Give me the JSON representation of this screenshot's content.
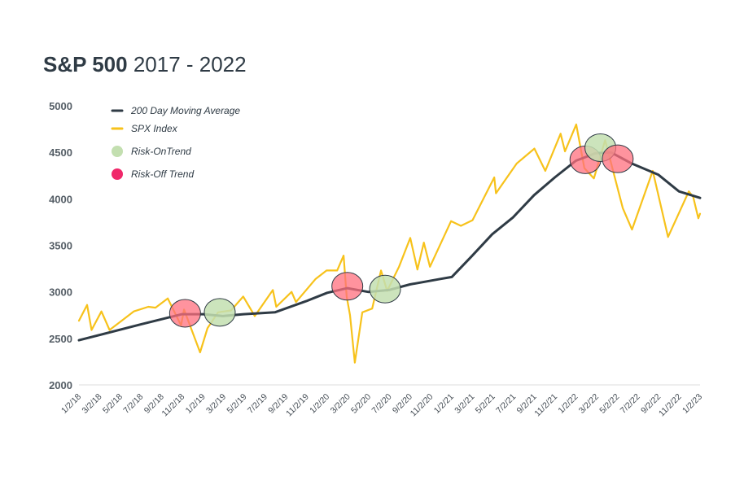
{
  "title": {
    "bold": "S&P 500",
    "rest": " 2017 - 2022"
  },
  "colors": {
    "ma": "#2f3b45",
    "spx": "#f7c21b",
    "risk_on": "#c3dfb0",
    "risk_off": "#ff6f7d",
    "legend_risk_off": "#f0286a",
    "axis": "#dddddd",
    "text": "#2f3b45"
  },
  "chart_data": {
    "type": "line",
    "title": "S&P 500 2017 - 2022",
    "xlabel": "",
    "ylabel": "",
    "ylim": [
      2000,
      5000
    ],
    "xlim": [
      "2018-01-02",
      "2023-01-02"
    ],
    "yticks": [
      "5000",
      "4500",
      "4000",
      "3500",
      "3000",
      "2500",
      "2000"
    ],
    "xticks": [
      "1/2/18",
      "3/2/18",
      "5/2/18",
      "7/2/18",
      "9/2/18",
      "11/2/18",
      "1/2/19",
      "3/2/19",
      "5/2/19",
      "7/2/19",
      "9/2/19",
      "11/2/19",
      "1/2/20",
      "3/2/20",
      "5/2/20",
      "7/2/20",
      "9/2/20",
      "11/2/20",
      "1/2/21",
      "3/2/21",
      "5/2/21",
      "7/2/21",
      "9/2/21",
      "11/2/21",
      "1/2/22",
      "3/2/22",
      "5/2/22",
      "7/2/22",
      "9/2/22",
      "11/2/22",
      "1/2/23"
    ],
    "grid": false,
    "legend_position": "top-left",
    "legend": [
      {
        "label": "200 Day Moving Average",
        "kind": "line",
        "color_key": "ma"
      },
      {
        "label": "SPX Index",
        "kind": "line",
        "color_key": "spx"
      },
      {
        "label": "Risk-OnTrend",
        "kind": "marker",
        "color_key": "risk_on"
      },
      {
        "label": "Risk-Off Trend",
        "kind": "marker",
        "color_key": "legend_risk_off"
      }
    ],
    "series": [
      {
        "name": "SPX Index",
        "points": [
          [
            "2018-01-02",
            2690
          ],
          [
            "2018-01-26",
            2860
          ],
          [
            "2018-02-08",
            2590
          ],
          [
            "2018-03-09",
            2790
          ],
          [
            "2018-04-02",
            2590
          ],
          [
            "2018-05-15",
            2710
          ],
          [
            "2018-06-12",
            2790
          ],
          [
            "2018-07-25",
            2840
          ],
          [
            "2018-08-15",
            2830
          ],
          [
            "2018-09-20",
            2930
          ],
          [
            "2018-10-29",
            2640
          ],
          [
            "2018-11-07",
            2810
          ],
          [
            "2018-12-24",
            2350
          ],
          [
            "2019-01-15",
            2610
          ],
          [
            "2019-02-15",
            2780
          ],
          [
            "2019-03-25",
            2800
          ],
          [
            "2019-04-30",
            2950
          ],
          [
            "2019-06-03",
            2740
          ],
          [
            "2019-07-26",
            3020
          ],
          [
            "2019-08-05",
            2840
          ],
          [
            "2019-09-19",
            3000
          ],
          [
            "2019-10-02",
            2890
          ],
          [
            "2019-11-29",
            3140
          ],
          [
            "2019-12-31",
            3230
          ],
          [
            "2020-01-31",
            3230
          ],
          [
            "2020-02-19",
            3390
          ],
          [
            "2020-02-28",
            2950
          ],
          [
            "2020-03-09",
            2750
          ],
          [
            "2020-03-23",
            2240
          ],
          [
            "2020-04-14",
            2780
          ],
          [
            "2020-05-13",
            2820
          ],
          [
            "2020-06-08",
            3230
          ],
          [
            "2020-06-26",
            3010
          ],
          [
            "2020-07-31",
            3270
          ],
          [
            "2020-09-02",
            3580
          ],
          [
            "2020-09-23",
            3240
          ],
          [
            "2020-10-12",
            3530
          ],
          [
            "2020-10-30",
            3270
          ],
          [
            "2020-12-31",
            3760
          ],
          [
            "2021-01-29",
            3710
          ],
          [
            "2021-03-04",
            3770
          ],
          [
            "2021-05-07",
            4230
          ],
          [
            "2021-05-12",
            4060
          ],
          [
            "2021-07-12",
            4380
          ],
          [
            "2021-09-02",
            4540
          ],
          [
            "2021-10-04",
            4300
          ],
          [
            "2021-11-18",
            4700
          ],
          [
            "2021-12-01",
            4510
          ],
          [
            "2022-01-03",
            4800
          ],
          [
            "2022-01-27",
            4330
          ],
          [
            "2022-02-24",
            4220
          ],
          [
            "2022-03-29",
            4630
          ],
          [
            "2022-05-20",
            3900
          ],
          [
            "2022-06-16",
            3670
          ],
          [
            "2022-08-16",
            4300
          ],
          [
            "2022-09-30",
            3590
          ],
          [
            "2022-11-30",
            4080
          ],
          [
            "2022-12-13",
            4020
          ],
          [
            "2022-12-28",
            3790
          ],
          [
            "2023-01-02",
            3840
          ]
        ]
      },
      {
        "name": "200 Day Moving Average",
        "points": [
          [
            "2018-01-02",
            2480
          ],
          [
            "2018-07-02",
            2650
          ],
          [
            "2018-11-01",
            2760
          ],
          [
            "2019-01-02",
            2760
          ],
          [
            "2019-03-01",
            2740
          ],
          [
            "2019-05-01",
            2760
          ],
          [
            "2019-08-01",
            2780
          ],
          [
            "2019-11-01",
            2900
          ],
          [
            "2020-01-02",
            2990
          ],
          [
            "2020-03-01",
            3040
          ],
          [
            "2020-05-01",
            3000
          ],
          [
            "2020-07-01",
            3020
          ],
          [
            "2020-09-01",
            3080
          ],
          [
            "2020-12-01",
            3140
          ],
          [
            "2021-01-02",
            3160
          ],
          [
            "2021-03-01",
            3380
          ],
          [
            "2021-05-01",
            3620
          ],
          [
            "2021-07-01",
            3800
          ],
          [
            "2021-09-01",
            4040
          ],
          [
            "2021-11-01",
            4230
          ],
          [
            "2022-01-02",
            4410
          ],
          [
            "2022-03-01",
            4490
          ],
          [
            "2022-04-15",
            4500
          ],
          [
            "2022-06-15",
            4380
          ],
          [
            "2022-09-01",
            4260
          ],
          [
            "2022-11-01",
            4080
          ],
          [
            "2023-01-02",
            4010
          ]
        ]
      }
    ],
    "markers": [
      {
        "trend": "risk-off",
        "date": "2018-11-10",
        "value": 2770
      },
      {
        "trend": "risk-on",
        "date": "2019-02-20",
        "value": 2780
      },
      {
        "trend": "risk-off",
        "date": "2020-03-01",
        "value": 3060
      },
      {
        "trend": "risk-on",
        "date": "2020-06-20",
        "value": 3030
      },
      {
        "trend": "risk-off",
        "date": "2022-01-30",
        "value": 4420
      },
      {
        "trend": "risk-on",
        "date": "2022-03-15",
        "value": 4550
      },
      {
        "trend": "risk-off",
        "date": "2022-05-05",
        "value": 4430
      }
    ]
  }
}
